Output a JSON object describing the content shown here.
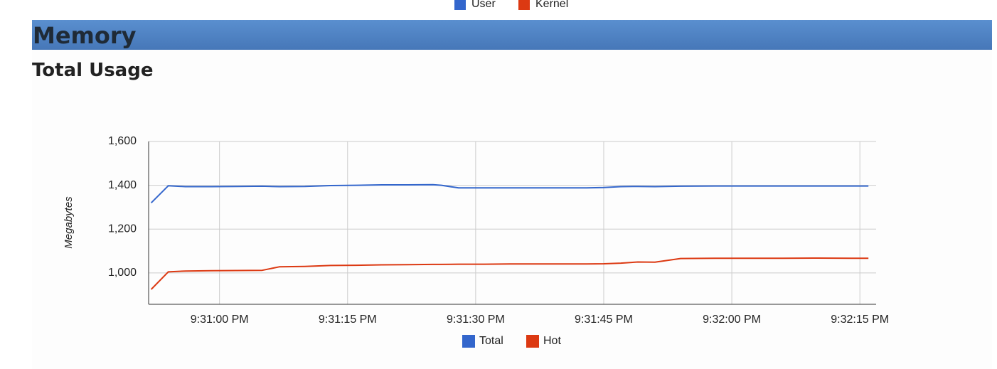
{
  "top_legend": [
    {
      "name": "User",
      "color": "#3366cc"
    },
    {
      "name": "Kernel",
      "color": "#dc3912"
    }
  ],
  "section": {
    "title": "Memory",
    "subtitle": "Total Usage"
  },
  "chart_data": {
    "type": "line",
    "y_label": "Megabytes",
    "x": [
      77452,
      77454,
      77456,
      77459,
      77462,
      77465,
      77467,
      77470,
      77473,
      77476,
      77479,
      77482,
      77485,
      77486,
      77488,
      77491,
      77494,
      77497,
      77500,
      77503,
      77505,
      77507,
      77509,
      77511,
      77514,
      77518,
      77522,
      77526,
      77530,
      77534,
      77536
    ],
    "series": [
      {
        "name": "Total",
        "color": "#3366cc",
        "values": [
          1320,
          1398,
          1394,
          1394,
          1395,
          1396,
          1394,
          1395,
          1399,
          1400,
          1402,
          1402,
          1403,
          1400,
          1388,
          1388,
          1388,
          1388,
          1388,
          1388,
          1390,
          1394,
          1395,
          1394,
          1396,
          1397,
          1397,
          1397,
          1397,
          1397,
          1397
        ]
      },
      {
        "name": "Hot",
        "color": "#dc3912",
        "values": [
          925,
          1005,
          1009,
          1010,
          1011,
          1012,
          1028,
          1030,
          1034,
          1035,
          1037,
          1038,
          1039,
          1039,
          1040,
          1040,
          1041,
          1041,
          1041,
          1041,
          1042,
          1045,
          1050,
          1049,
          1066,
          1067,
          1067,
          1067,
          1068,
          1067,
          1067
        ]
      }
    ],
    "xlim": [
      77451.7,
      77536.9
    ],
    "xticks": [
      {
        "value": 77460,
        "label": "9:31:00 PM"
      },
      {
        "value": 77475,
        "label": "9:31:15 PM"
      },
      {
        "value": 77490,
        "label": "9:31:30 PM"
      },
      {
        "value": 77505,
        "label": "9:31:45 PM"
      },
      {
        "value": 77520,
        "label": "9:32:00 PM"
      },
      {
        "value": 77535,
        "label": "9:32:15 PM"
      }
    ],
    "ylim": [
      857,
      1600
    ],
    "yticks": [
      {
        "value": 1000,
        "label": "1,000"
      },
      {
        "value": 1200,
        "label": "1,200"
      },
      {
        "value": 1400,
        "label": "1,400"
      },
      {
        "value": 1600,
        "label": "1,600"
      }
    ],
    "grid": true
  }
}
